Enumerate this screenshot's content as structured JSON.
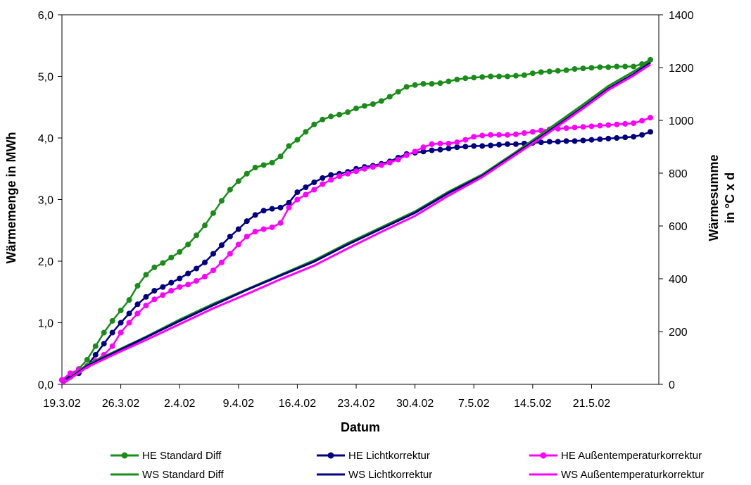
{
  "chart_data": {
    "type": "line",
    "title": "",
    "xlabel": "Datum",
    "ylabel_left": "Wärmemenge in MWh",
    "ylabel_right_lines": [
      "Wärmesumme",
      "in °C x d"
    ],
    "x_tick_labels": [
      "19.3.02",
      "26.3.02",
      "2.4.02",
      "9.4.02",
      "16.4.02",
      "23.4.02",
      "30.4.02",
      "7.5.02",
      "14.5.02",
      "21.5.02"
    ],
    "x_range_days": [
      0,
      71
    ],
    "y_left_ticks": [
      "0,0",
      "1,0",
      "2,0",
      "3,0",
      "4,0",
      "5,0",
      "6,0"
    ],
    "y_left_range": [
      0,
      6
    ],
    "y_right_ticks": [
      "0",
      "200",
      "400",
      "600",
      "800",
      "1000",
      "1200",
      "1400"
    ],
    "y_right_range": [
      0,
      1400
    ],
    "grid": false,
    "legend_position": "bottom",
    "series": [
      {
        "name": "HE Standard Diff",
        "axis": "left",
        "color": "#1a8c1a",
        "markers": true,
        "x": [
          0,
          1,
          2,
          3,
          4,
          5,
          6,
          7,
          8,
          9,
          10,
          11,
          12,
          13,
          14,
          15,
          16,
          17,
          18,
          19,
          20,
          21,
          22,
          23,
          24,
          25,
          26,
          27,
          28,
          29,
          30,
          31,
          32,
          33,
          34,
          35,
          36,
          37,
          38,
          39,
          40,
          41,
          42,
          43,
          44,
          45,
          46,
          47,
          48,
          49,
          50,
          51,
          52,
          53,
          54,
          55,
          56,
          57,
          58,
          59,
          60,
          61,
          62,
          63,
          64,
          65,
          66,
          67,
          68,
          69,
          70
        ],
        "values": [
          0.07,
          0.15,
          0.25,
          0.4,
          0.62,
          0.84,
          1.03,
          1.2,
          1.37,
          1.6,
          1.78,
          1.9,
          1.97,
          2.06,
          2.15,
          2.27,
          2.42,
          2.58,
          2.78,
          2.98,
          3.16,
          3.3,
          3.42,
          3.52,
          3.56,
          3.6,
          3.7,
          3.87,
          3.97,
          4.1,
          4.22,
          4.3,
          4.35,
          4.38,
          4.42,
          4.48,
          4.52,
          4.55,
          4.6,
          4.67,
          4.75,
          4.83,
          4.86,
          4.88,
          4.88,
          4.89,
          4.92,
          4.95,
          4.97,
          4.98,
          4.99,
          5.0,
          5.0,
          5.0,
          5.01,
          5.02,
          5.05,
          5.07,
          5.08,
          5.09,
          5.1,
          5.12,
          5.13,
          5.14,
          5.15,
          5.15,
          5.16,
          5.16,
          5.16,
          5.2,
          5.27
        ]
      },
      {
        "name": "HE Lichtkorrektur",
        "axis": "left",
        "color": "#000080",
        "markers": true,
        "x": [
          0,
          1,
          2,
          3,
          4,
          5,
          6,
          7,
          8,
          9,
          10,
          11,
          12,
          13,
          14,
          15,
          16,
          17,
          18,
          19,
          20,
          21,
          22,
          23,
          24,
          25,
          26,
          27,
          28,
          29,
          30,
          31,
          32,
          33,
          34,
          35,
          36,
          37,
          38,
          39,
          40,
          41,
          42,
          43,
          44,
          45,
          46,
          47,
          48,
          49,
          50,
          51,
          52,
          53,
          54,
          55,
          56,
          57,
          58,
          59,
          60,
          61,
          62,
          63,
          64,
          65,
          66,
          67,
          68,
          69,
          70
        ],
        "values": [
          0.07,
          0.12,
          0.18,
          0.3,
          0.48,
          0.66,
          0.84,
          1.0,
          1.15,
          1.3,
          1.42,
          1.52,
          1.58,
          1.65,
          1.72,
          1.8,
          1.88,
          1.98,
          2.12,
          2.26,
          2.4,
          2.52,
          2.65,
          2.75,
          2.82,
          2.85,
          2.87,
          2.95,
          3.12,
          3.2,
          3.28,
          3.35,
          3.4,
          3.42,
          3.45,
          3.5,
          3.53,
          3.55,
          3.58,
          3.62,
          3.68,
          3.74,
          3.76,
          3.78,
          3.8,
          3.81,
          3.83,
          3.85,
          3.86,
          3.87,
          3.87,
          3.88,
          3.89,
          3.9,
          3.9,
          3.91,
          3.92,
          3.93,
          3.94,
          3.94,
          3.95,
          3.95,
          3.96,
          3.97,
          3.98,
          3.99,
          4.0,
          4.01,
          4.02,
          4.05,
          4.1
        ]
      },
      {
        "name": "HE Außentemperaturkorrektur",
        "axis": "left",
        "color": "#ff00ff",
        "markers": true,
        "x": [
          0,
          1,
          2,
          3,
          4,
          5,
          6,
          7,
          8,
          9,
          10,
          11,
          12,
          13,
          14,
          15,
          16,
          17,
          18,
          19,
          20,
          21,
          22,
          23,
          24,
          25,
          26,
          27,
          28,
          29,
          30,
          31,
          32,
          33,
          34,
          35,
          36,
          37,
          38,
          39,
          40,
          41,
          42,
          43,
          44,
          45,
          46,
          47,
          48,
          49,
          50,
          51,
          52,
          53,
          54,
          55,
          56,
          57,
          58,
          59,
          60,
          61,
          62,
          63,
          64,
          65,
          66,
          67,
          68,
          69,
          70
        ],
        "values": [
          0.07,
          0.18,
          0.24,
          0.3,
          0.38,
          0.48,
          0.62,
          0.84,
          1.0,
          1.15,
          1.28,
          1.38,
          1.45,
          1.52,
          1.58,
          1.62,
          1.68,
          1.75,
          1.85,
          1.98,
          2.12,
          2.27,
          2.4,
          2.48,
          2.52,
          2.55,
          2.62,
          2.87,
          3.0,
          3.08,
          3.16,
          3.25,
          3.32,
          3.38,
          3.42,
          3.46,
          3.5,
          3.53,
          3.56,
          3.6,
          3.65,
          3.72,
          3.78,
          3.85,
          3.9,
          3.91,
          3.91,
          3.93,
          3.97,
          4.02,
          4.04,
          4.05,
          4.05,
          4.05,
          4.06,
          4.08,
          4.1,
          4.12,
          4.14,
          4.15,
          4.16,
          4.17,
          4.18,
          4.19,
          4.2,
          4.21,
          4.22,
          4.23,
          4.24,
          4.28,
          4.33
        ]
      },
      {
        "name": "WS Standard Diff",
        "axis": "right",
        "color": "#1a8c1a",
        "markers": false,
        "x": [
          0,
          3,
          7,
          10,
          14,
          18,
          22,
          26,
          30,
          34,
          38,
          42,
          46,
          50,
          54,
          58,
          62,
          65,
          68,
          70
        ],
        "values": [
          0,
          75,
          135,
          180,
          245,
          305,
          360,
          415,
          470,
          535,
          595,
          655,
          730,
          795,
          880,
          970,
          1060,
          1130,
          1185,
          1225
        ]
      },
      {
        "name": "WS Lichtkorrektur",
        "axis": "right",
        "color": "#000080",
        "markers": false,
        "x": [
          0,
          3,
          7,
          10,
          14,
          18,
          22,
          26,
          30,
          34,
          38,
          42,
          46,
          50,
          54,
          58,
          62,
          65,
          68,
          70
        ],
        "values": [
          0,
          70,
          132,
          178,
          240,
          300,
          358,
          412,
          465,
          530,
          590,
          650,
          725,
          790,
          875,
          960,
          1050,
          1120,
          1175,
          1218
        ]
      },
      {
        "name": "WS Außentemperaturkorrektur",
        "axis": "right",
        "color": "#ff00ff",
        "markers": false,
        "x": [
          0,
          3,
          7,
          10,
          14,
          18,
          22,
          26,
          30,
          34,
          38,
          42,
          46,
          50,
          54,
          58,
          62,
          65,
          68,
          70
        ],
        "values": [
          0,
          65,
          125,
          168,
          228,
          288,
          342,
          398,
          450,
          515,
          578,
          638,
          715,
          785,
          870,
          955,
          1045,
          1115,
          1170,
          1212
        ]
      }
    ]
  }
}
